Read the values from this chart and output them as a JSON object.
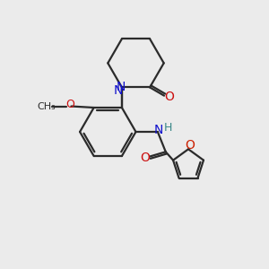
{
  "background_color": "#ebebeb",
  "bond_color": "#2b2b2b",
  "N_color": "#1010cc",
  "O_color": "#cc1010",
  "O_furan_color": "#cc2000",
  "H_color": "#3a8888",
  "line_width": 1.6,
  "figsize": [
    3.0,
    3.0
  ],
  "dpi": 100,
  "xlim": [
    0,
    10
  ],
  "ylim": [
    0,
    10
  ]
}
